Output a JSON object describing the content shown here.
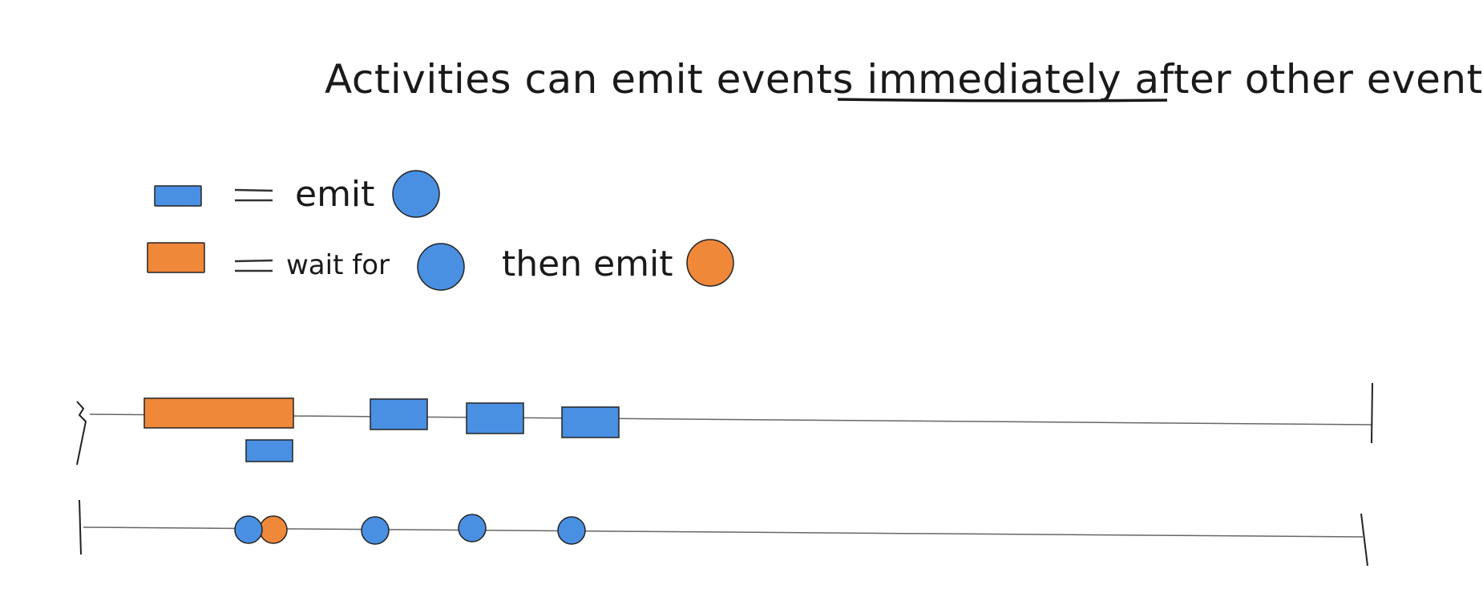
{
  "title": {
    "before": "Activities can emit events ",
    "emphasis": "immediately after",
    "after": " other events"
  },
  "legend": {
    "equals": "=",
    "emit_label": "emit",
    "wait_for_label": "wait for",
    "then_emit_label": "then emit"
  },
  "colors": {
    "blue": "#4a90e2",
    "orange": "#f0883a",
    "stroke": "#222222",
    "line": "#666666"
  },
  "icons": {
    "blue_box": "blue-rectangle",
    "orange_box": "orange-rectangle",
    "blue_event": "blue-circle",
    "orange_event": "orange-circle"
  }
}
